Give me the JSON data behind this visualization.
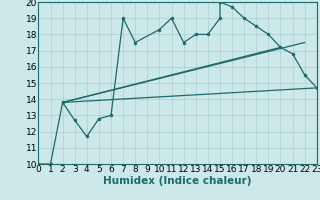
{
  "xlabel": "Humidex (Indice chaleur)",
  "bg_color": "#cce8e8",
  "line_color": "#1a6b6b",
  "grid_color": "#aacfcf",
  "xlim": [
    0,
    23
  ],
  "ylim": [
    10,
    20
  ],
  "xticks": [
    0,
    1,
    2,
    3,
    4,
    5,
    6,
    7,
    8,
    9,
    10,
    11,
    12,
    13,
    14,
    15,
    16,
    17,
    18,
    19,
    20,
    21,
    22,
    23
  ],
  "yticks": [
    10,
    11,
    12,
    13,
    14,
    15,
    16,
    17,
    18,
    19,
    20
  ],
  "line1_x": [
    0,
    1,
    2,
    3,
    4,
    5,
    6,
    7,
    8,
    10,
    11,
    12,
    13,
    14,
    15,
    15,
    16,
    17,
    18,
    19,
    20,
    21,
    22,
    23
  ],
  "line1_y": [
    10,
    10,
    13.8,
    12.7,
    11.7,
    12.8,
    13.0,
    19.0,
    17.5,
    18.3,
    19.0,
    17.5,
    18.0,
    18.0,
    19.0,
    20.0,
    19.7,
    19.0,
    18.5,
    18.0,
    17.2,
    16.8,
    15.5,
    14.7
  ],
  "line2_x": [
    2,
    23
  ],
  "line2_y": [
    13.8,
    14.7
  ],
  "line3_x": [
    2,
    20
  ],
  "line3_y": [
    13.8,
    17.2
  ],
  "line4_x": [
    2,
    22
  ],
  "line4_y": [
    13.8,
    17.5
  ],
  "tick_fontsize": 6.5,
  "xlabel_fontsize": 7.5
}
